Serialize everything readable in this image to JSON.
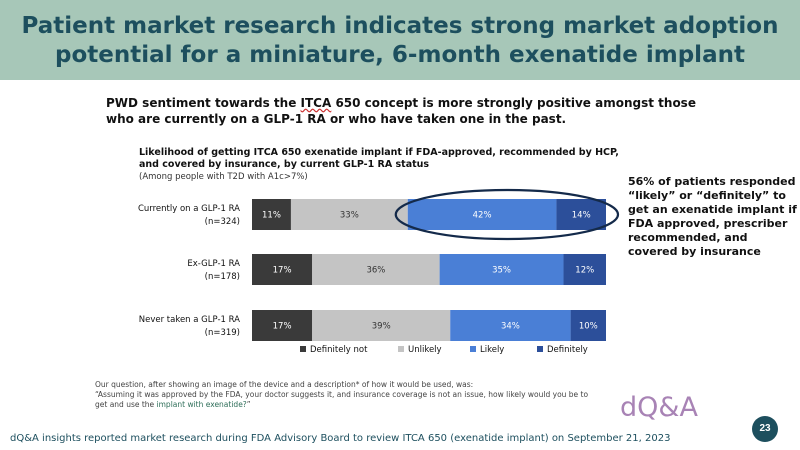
{
  "slide": {
    "title": "Patient market research indicates strong market adoption potential for a miniature, 6-month exenatide implant",
    "headline_pre": "PWD sentiment towards the ",
    "headline_term": "ITCA",
    "headline_post": " 650 concept is more strongly positive amongst those who are currently on a GLP-1 RA or who have taken one in the past.",
    "callout": "56% of patients responded “likely” or “definitely” to get an exenatide implant if FDA approved, prescriber recommended, and covered by insurance",
    "footnote_line1": "Our question, after showing an image of the device and a description* of how it would be used, was:",
    "footnote_line2": "“Assuming it was approved by the FDA, your doctor suggests it, and insurance coverage is not an issue, how likely would you be to get and use the ",
    "footnote_highlight": "implant with exenatide?",
    "footnote_end": "”",
    "logo": "dQ&A",
    "page_number": "23",
    "footer": "dQ&A insights reported market research during FDA Advisory Board to review ITCA 650 (exenatide implant) on September 21, 2023"
  },
  "chart_data": {
    "type": "bar",
    "orientation": "horizontal",
    "stacked": "100%",
    "title": "Likelihood of getting ITCA 650 exenatide implant if FDA-approved, recommended by HCP, and covered by insurance, by current GLP-1 RA status",
    "subtitle": "(Among people with T2D with A1c>7%)",
    "categories": [
      {
        "name": "Currently on a GLP-1 RA",
        "n": "(n=324)"
      },
      {
        "name": "Ex-GLP-1 RA",
        "n": "(n=178)"
      },
      {
        "name": "Never taken a GLP-1 RA",
        "n": "(n=319)"
      }
    ],
    "series": [
      {
        "name": "Definitely not",
        "color": "#3a3a3a",
        "label_color": "#ffffff",
        "values": [
          11,
          17,
          17
        ]
      },
      {
        "name": "Unlikely",
        "color": "#c4c4c4",
        "label_color": "#333333",
        "values": [
          33,
          36,
          39
        ]
      },
      {
        "name": "Likely",
        "color": "#4a7fd6",
        "label_color": "#ffffff",
        "values": [
          42,
          35,
          34
        ]
      },
      {
        "name": "Definitely",
        "color": "#2c4f9a",
        "label_color": "#ffffff",
        "values": [
          14,
          12,
          10
        ]
      }
    ],
    "value_suffix": "%",
    "legend_position": "bottom",
    "highlight": {
      "category_index": 0,
      "series": [
        "Likely",
        "Definitely"
      ],
      "shape": "ellipse",
      "color": "#142a4a"
    }
  }
}
